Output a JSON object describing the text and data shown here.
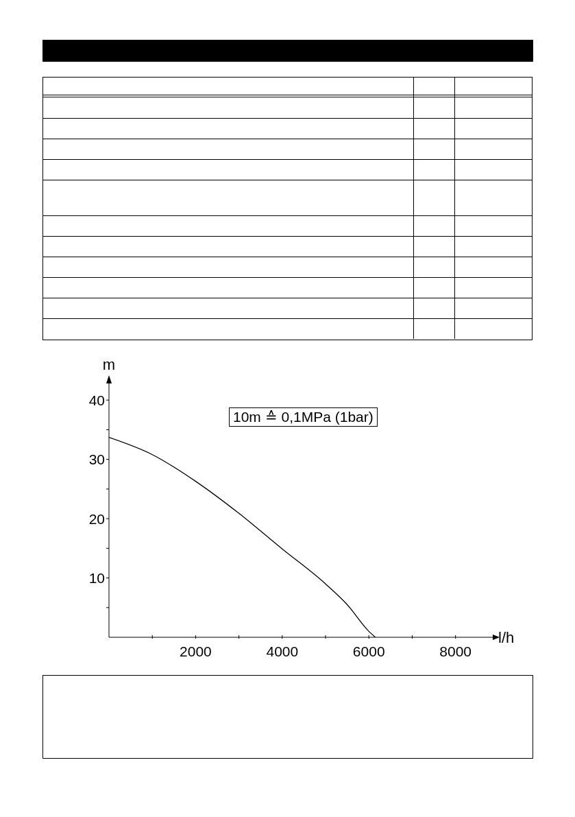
{
  "chart_data": {
    "type": "line",
    "xlabel": "l/h",
    "ylabel": "m",
    "x": [
      0,
      1000,
      2000,
      3000,
      4000,
      5000,
      5500,
      6000,
      6150
    ],
    "series": [
      {
        "color": "#000000",
        "values": [
          33.7,
          30.8,
          26.3,
          20.9,
          14.9,
          9.0,
          5.5,
          1.0,
          0
        ]
      }
    ],
    "xlim": [
      0,
      8860
    ],
    "ylim": [
      0,
      42.8
    ],
    "xticks": [
      {
        "value": 1000,
        "label": null
      },
      2000,
      {
        "value": 3000,
        "label": null
      },
      4000,
      {
        "value": 5000,
        "label": null
      },
      6000,
      {
        "value": 7000,
        "label": null
      },
      8000
    ],
    "yticks": [
      {
        "value": 5,
        "label": null
      },
      10,
      {
        "value": 15,
        "label": null
      },
      20,
      {
        "value": 25,
        "label": null
      },
      30,
      {
        "value": 35,
        "label": null
      },
      40
    ],
    "annotations": [
      "10m ≙ 0,1MPa (1bar)"
    ],
    "grid": false,
    "legend": false,
    "marker": "none",
    "line_style": "solid"
  }
}
